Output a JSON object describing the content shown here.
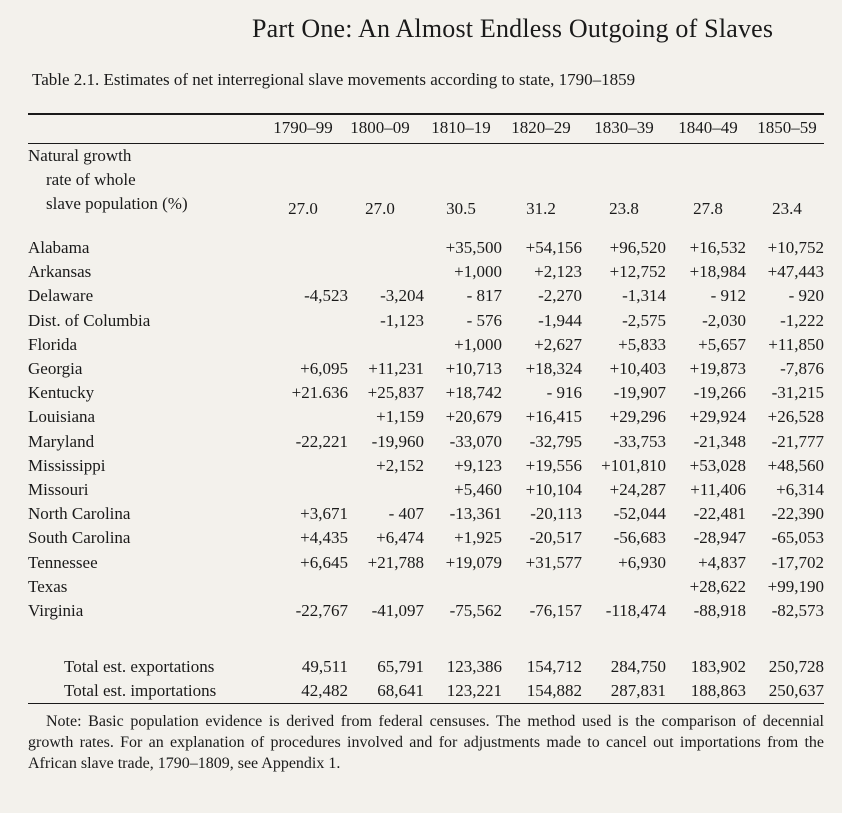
{
  "running_head": "Part One: An Almost Endless Outgoing of Slaves",
  "table": {
    "caption": "Table 2.1. Estimates of net interregional slave movements according to state, 1790–1859",
    "columns": [
      "1790–99",
      "1800–09",
      "1810–19",
      "1820–29",
      "1830–39",
      "1840–49",
      "1850–59"
    ],
    "natural_growth": {
      "label_lines": [
        "Natural growth",
        "rate of whole",
        "slave population (%)"
      ],
      "values": [
        "27.0",
        "27.0",
        "30.5",
        "31.2",
        "23.8",
        "27.8",
        "23.4"
      ]
    },
    "rows": [
      {
        "state": "Alabama",
        "values": [
          "",
          "",
          "+35,500",
          "+54,156",
          "+96,520",
          "+16,532",
          "+10,752"
        ]
      },
      {
        "state": "Arkansas",
        "values": [
          "",
          "",
          "+1,000",
          "+2,123",
          "+12,752",
          "+18,984",
          "+47,443"
        ]
      },
      {
        "state": "Delaware",
        "values": [
          "-4,523",
          "-3,204",
          "- 817",
          "-2,270",
          "-1,314",
          "- 912",
          "- 920"
        ]
      },
      {
        "state": "Dist. of Columbia",
        "values": [
          "",
          "-1,123",
          "- 576",
          "-1,944",
          "-2,575",
          "-2,030",
          "-1,222"
        ]
      },
      {
        "state": "Florida",
        "values": [
          "",
          "",
          "+1,000",
          "+2,627",
          "+5,833",
          "+5,657",
          "+11,850"
        ]
      },
      {
        "state": "Georgia",
        "values": [
          "+6,095",
          "+11,231",
          "+10,713",
          "+18,324",
          "+10,403",
          "+19,873",
          "-7,876"
        ]
      },
      {
        "state": "Kentucky",
        "values": [
          "+21.636",
          "+25,837",
          "+18,742",
          "- 916",
          "-19,907",
          "-19,266",
          "-31,215"
        ]
      },
      {
        "state": "Louisiana",
        "values": [
          "",
          "+1,159",
          "+20,679",
          "+16,415",
          "+29,296",
          "+29,924",
          "+26,528"
        ]
      },
      {
        "state": "Maryland",
        "values": [
          "-22,221",
          "-19,960",
          "-33,070",
          "-32,795",
          "-33,753",
          "-21,348",
          "-21,777"
        ]
      },
      {
        "state": "Mississippi",
        "values": [
          "",
          "+2,152",
          "+9,123",
          "+19,556",
          "+101,810",
          "+53,028",
          "+48,560"
        ]
      },
      {
        "state": "Missouri",
        "values": [
          "",
          "",
          "+5,460",
          "+10,104",
          "+24,287",
          "+11,406",
          "+6,314"
        ]
      },
      {
        "state": "North Carolina",
        "values": [
          "+3,671",
          "- 407",
          "-13,361",
          "-20,113",
          "-52,044",
          "-22,481",
          "-22,390"
        ]
      },
      {
        "state": "South Carolina",
        "values": [
          "+4,435",
          "+6,474",
          "+1,925",
          "-20,517",
          "-56,683",
          "-28,947",
          "-65,053"
        ]
      },
      {
        "state": "Tennessee",
        "values": [
          "+6,645",
          "+21,788",
          "+19,079",
          "+31,577",
          "+6,930",
          "+4,837",
          "-17,702"
        ]
      },
      {
        "state": "Texas",
        "values": [
          "",
          "",
          "",
          "",
          "",
          "+28,622",
          "+99,190"
        ]
      },
      {
        "state": "Virginia",
        "values": [
          "-22,767",
          "-41,097",
          "-75,562",
          "-76,157",
          "-118,474",
          "-88,918",
          "-82,573"
        ]
      }
    ],
    "totals": [
      {
        "label": "Total est. exportations",
        "values": [
          "49,511",
          "65,791",
          "123,386",
          "154,712",
          "284,750",
          "183,902",
          "250,728"
        ]
      },
      {
        "label": "Total est. importations",
        "values": [
          "42,482",
          "68,641",
          "123,221",
          "154,882",
          "287,831",
          "188,863",
          "250,637"
        ]
      }
    ],
    "note": "Note: Basic population evidence is derived from federal censuses. The method used is the comparison of decennial growth rates. For an explanation of procedures involved and for adjustments made to cancel out importations from the African slave trade, 1790–1809, see Appendix 1."
  }
}
